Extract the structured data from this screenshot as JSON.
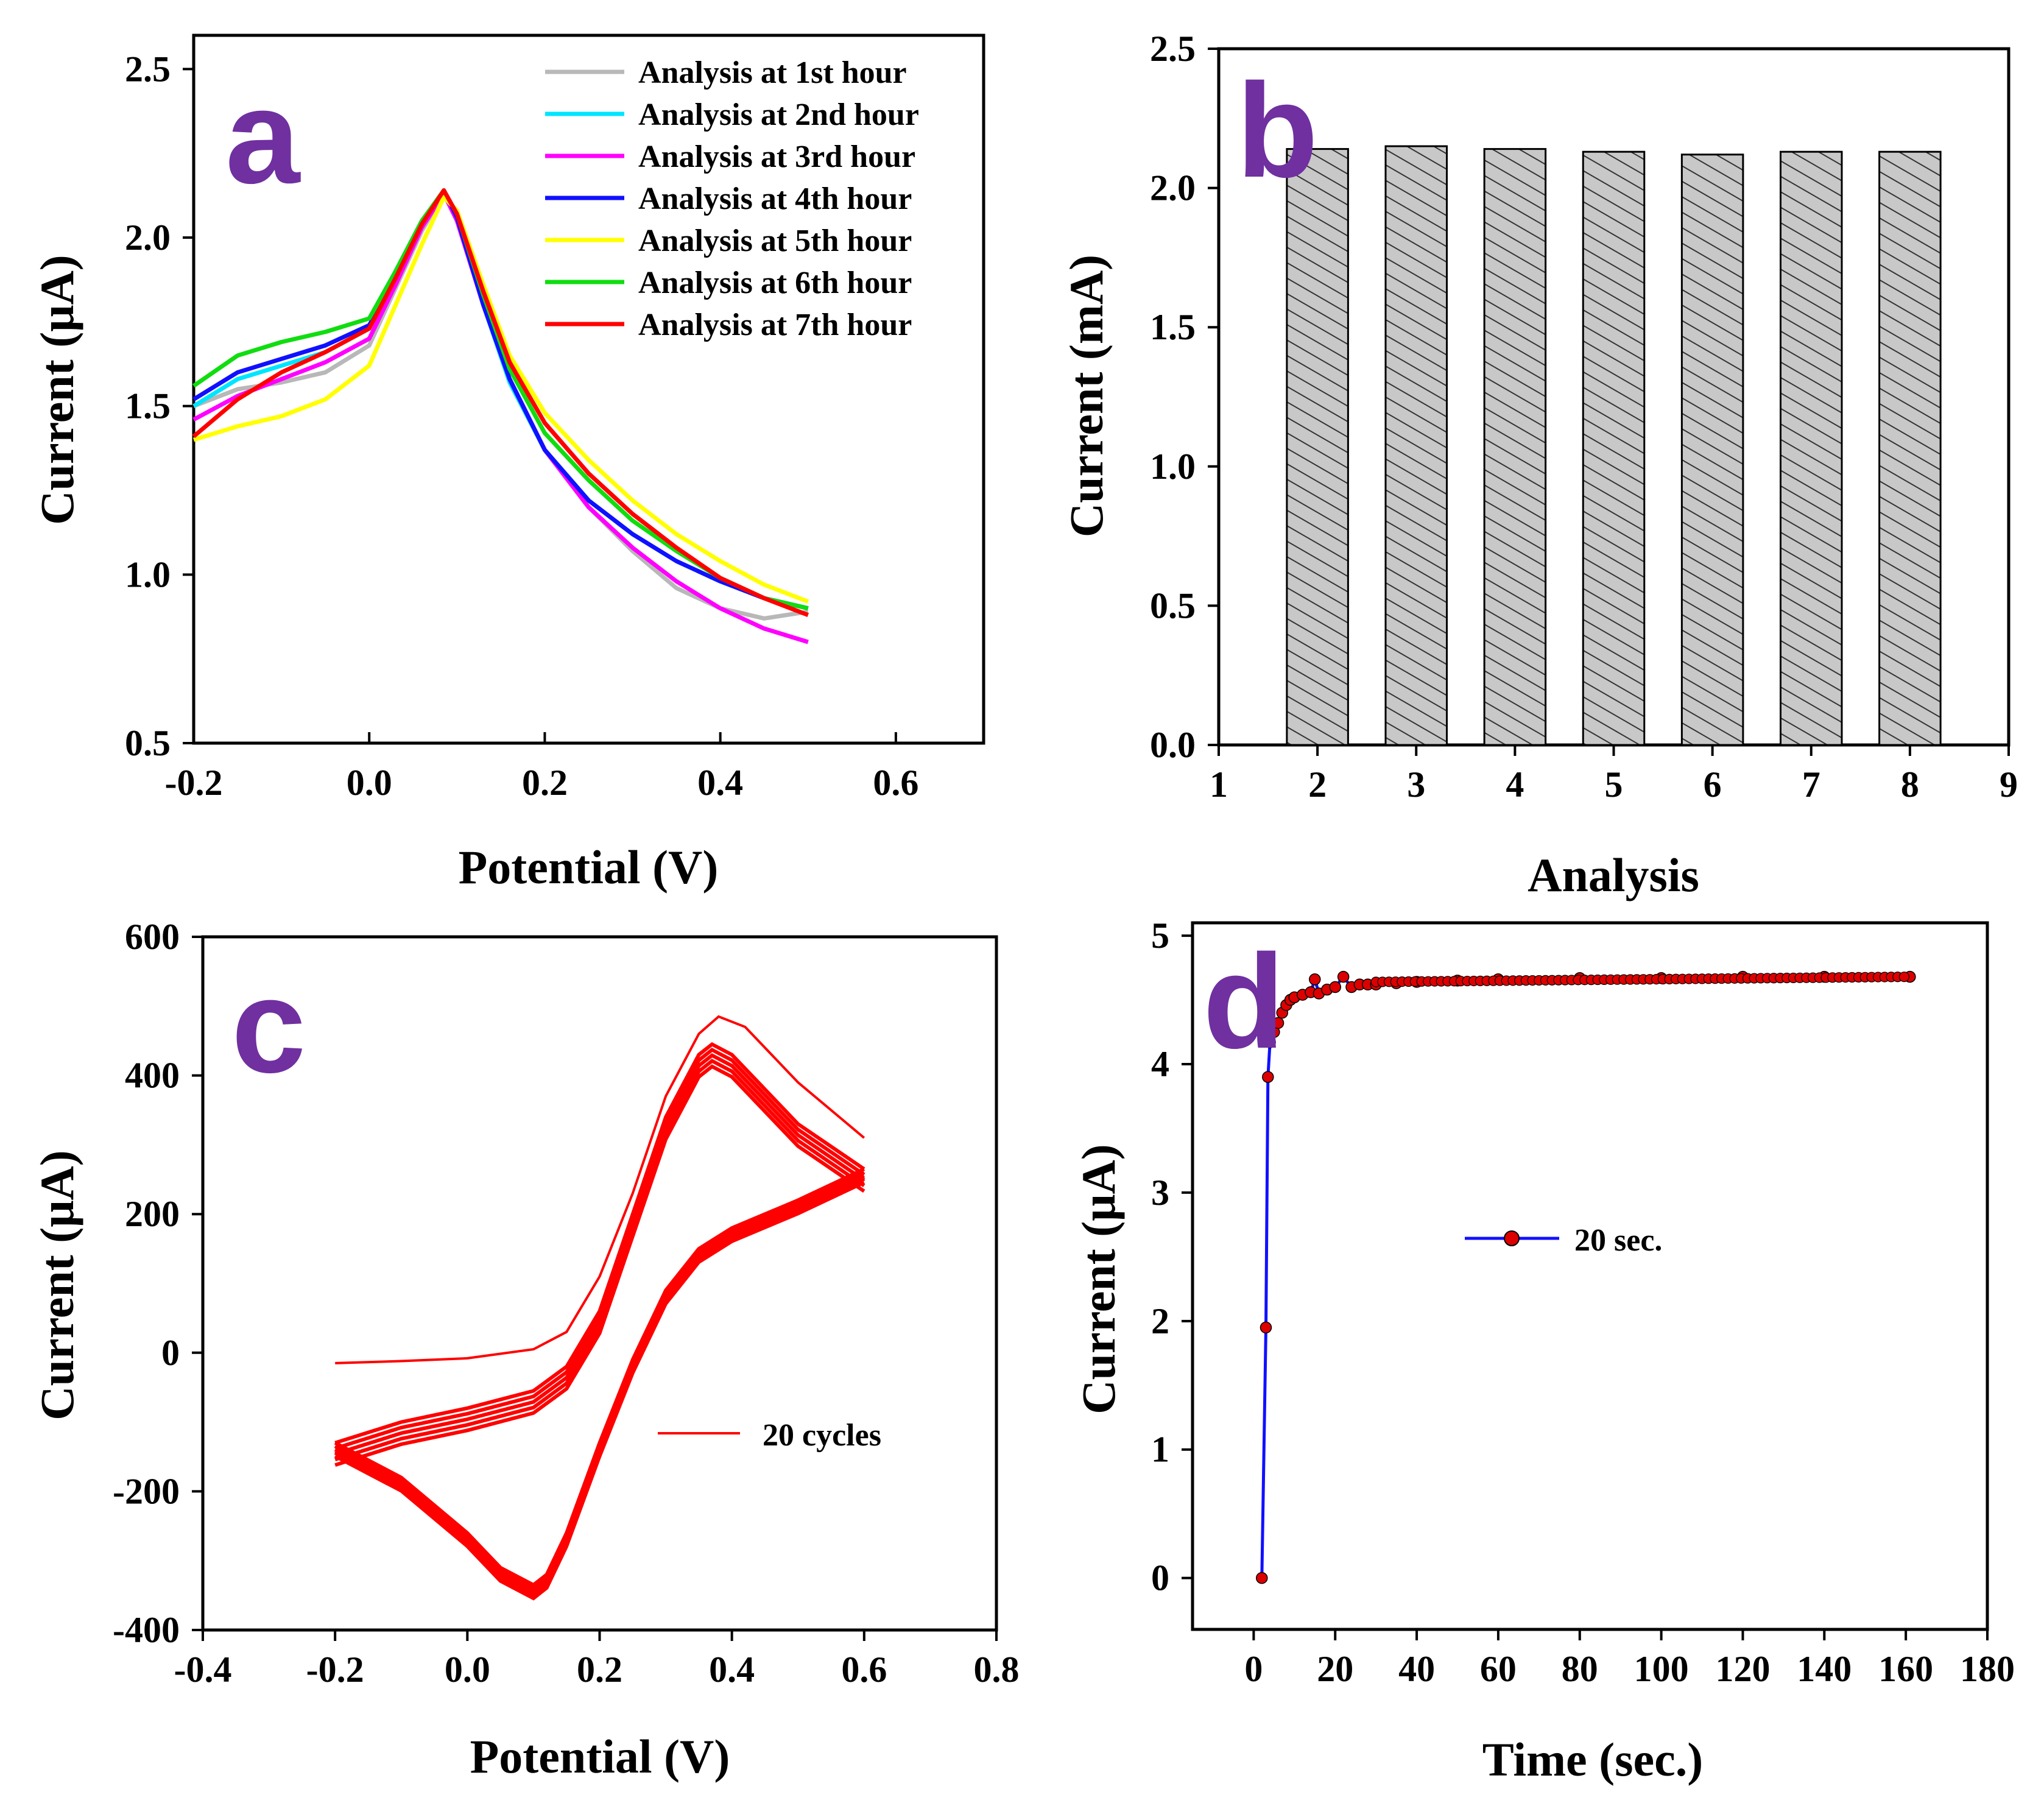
{
  "colors": {
    "panel_letter": "#7030a0",
    "h1": "#b8b8b8",
    "h2": "#00e5ff",
    "h3": "#ff00ff",
    "h4": "#1010ff",
    "h5": "#ffff00",
    "h6": "#10dd10",
    "h7": "#ff0000",
    "bar_fill": "#c8c8c8",
    "cv": "#ff0000",
    "ca_line": "#1010ff",
    "ca_marker": "#dd0000"
  },
  "chart_data": [
    {
      "panel": "a",
      "type": "line",
      "xlabel": "Potential (V)",
      "ylabel": "Current (μA)",
      "xlim": [
        -0.2,
        0.7
      ],
      "ylim": [
        0.5,
        2.6
      ],
      "xticks": [
        "-0.2",
        "0.0",
        "0.2",
        "0.4",
        "0.6"
      ],
      "xtick_values": [
        -0.2,
        0.0,
        0.2,
        0.4,
        0.6
      ],
      "yticks": [
        "0.5",
        "1.0",
        "1.5",
        "2.0",
        "2.5"
      ],
      "ytick_values": [
        0.5,
        1.0,
        1.5,
        2.0,
        2.5
      ],
      "legend_position": "top-right",
      "x": [
        -0.2,
        -0.15,
        -0.1,
        -0.05,
        0.0,
        0.03,
        0.06,
        0.085,
        0.1,
        0.13,
        0.16,
        0.2,
        0.25,
        0.3,
        0.35,
        0.4,
        0.45,
        0.5
      ],
      "series": [
        {
          "name": "Analysis at 1st hour",
          "color_key": "h1",
          "values": [
            1.5,
            1.55,
            1.57,
            1.6,
            1.68,
            1.85,
            2.02,
            2.13,
            2.05,
            1.8,
            1.58,
            1.37,
            1.2,
            1.07,
            0.96,
            0.9,
            0.87,
            0.89
          ]
        },
        {
          "name": "Analysis at 2nd hour",
          "color_key": "h2",
          "values": [
            1.5,
            1.58,
            1.62,
            1.66,
            1.73,
            1.88,
            2.04,
            2.14,
            2.06,
            1.8,
            1.57,
            1.37,
            1.22,
            1.12,
            1.04,
            0.98,
            0.93,
            0.9
          ]
        },
        {
          "name": "Analysis at 3rd hour",
          "color_key": "h3",
          "values": [
            1.46,
            1.53,
            1.58,
            1.63,
            1.7,
            1.86,
            2.03,
            2.13,
            2.05,
            1.8,
            1.58,
            1.37,
            1.2,
            1.08,
            0.98,
            0.9,
            0.84,
            0.8
          ]
        },
        {
          "name": "Analysis at 4th hour",
          "color_key": "h4",
          "values": [
            1.52,
            1.6,
            1.64,
            1.68,
            1.74,
            1.88,
            2.04,
            2.14,
            2.06,
            1.8,
            1.58,
            1.37,
            1.22,
            1.12,
            1.04,
            0.98,
            0.93,
            0.9
          ]
        },
        {
          "name": "Analysis at 5th hour",
          "color_key": "h5",
          "values": [
            1.4,
            1.44,
            1.47,
            1.52,
            1.62,
            1.8,
            1.98,
            2.12,
            2.08,
            1.86,
            1.65,
            1.48,
            1.34,
            1.22,
            1.12,
            1.04,
            0.97,
            0.92
          ]
        },
        {
          "name": "Analysis at 6th hour",
          "color_key": "h6",
          "values": [
            1.56,
            1.65,
            1.69,
            1.72,
            1.76,
            1.9,
            2.05,
            2.14,
            2.07,
            1.83,
            1.61,
            1.42,
            1.28,
            1.16,
            1.07,
            0.99,
            0.93,
            0.9
          ]
        },
        {
          "name": "Analysis at 7th hour",
          "color_key": "h7",
          "values": [
            1.41,
            1.52,
            1.6,
            1.66,
            1.73,
            1.88,
            2.04,
            2.14,
            2.07,
            1.84,
            1.63,
            1.45,
            1.3,
            1.18,
            1.08,
            0.99,
            0.93,
            0.88
          ]
        }
      ]
    },
    {
      "panel": "b",
      "type": "bar",
      "xlabel": "Analysis",
      "ylabel": "Current (mA)",
      "xlim": [
        1,
        9
      ],
      "ylim": [
        0,
        2.5
      ],
      "xticks": [
        "1",
        "2",
        "3",
        "4",
        "5",
        "6",
        "7",
        "8",
        "9"
      ],
      "xtick_values": [
        1,
        2,
        3,
        4,
        5,
        6,
        7,
        8,
        9
      ],
      "yticks": [
        "0.0",
        "0.5",
        "1.0",
        "1.5",
        "2.0",
        "2.5"
      ],
      "ytick_values": [
        0,
        0.5,
        1.0,
        1.5,
        2.0,
        2.5
      ],
      "categories": [
        2,
        3,
        4,
        5,
        6,
        7,
        8
      ],
      "values": [
        2.14,
        2.15,
        2.14,
        2.13,
        2.12,
        2.13,
        2.13
      ]
    },
    {
      "panel": "c",
      "type": "line",
      "xlabel": "Potential (V)",
      "ylabel": "Current (μA)",
      "xlim": [
        -0.4,
        0.8
      ],
      "ylim": [
        -400,
        600
      ],
      "xticks": [
        "-0.4",
        "-0.2",
        "0.0",
        "0.2",
        "0.4",
        "0.6",
        "0.8"
      ],
      "xtick_values": [
        -0.4,
        -0.2,
        0.0,
        0.2,
        0.4,
        0.6,
        0.8
      ],
      "yticks": [
        "-400",
        "-200",
        "0",
        "200",
        "400",
        "600"
      ],
      "ytick_values": [
        -400,
        -200,
        0,
        200,
        400,
        600
      ],
      "legend_position": "center-right",
      "series": [
        {
          "name": "20 cycles",
          "color_key": "cv",
          "first_sweep": {
            "x": [
              -0.2,
              -0.1,
              0.0,
              0.1,
              0.15,
              0.2,
              0.25,
              0.3,
              0.35,
              0.38,
              0.42,
              0.5,
              0.6
            ],
            "y": [
              -15,
              -12,
              -8,
              5,
              30,
              110,
              230,
              370,
              460,
              485,
              470,
              390,
              310
            ]
          },
          "forward": {
            "x": [
              -0.2,
              -0.1,
              0.0,
              0.1,
              0.15,
              0.2,
              0.25,
              0.3,
              0.35,
              0.37,
              0.4,
              0.45,
              0.5,
              0.6
            ],
            "y": [
              -130,
              -100,
              -80,
              -55,
              -20,
              60,
              200,
              340,
              430,
              445,
              430,
              380,
              330,
              265
            ]
          },
          "reverse": {
            "x": [
              0.6,
              0.5,
              0.4,
              0.35,
              0.3,
              0.25,
              0.2,
              0.15,
              0.12,
              0.1,
              0.05,
              0.0,
              -0.1,
              -0.2
            ],
            "y": [
              265,
              220,
              180,
              150,
              90,
              -10,
              -130,
              -260,
              -320,
              -335,
              -310,
              -260,
              -180,
              -130
            ]
          }
        }
      ]
    },
    {
      "panel": "d",
      "type": "line",
      "xlabel": "Time (sec.)",
      "ylabel": "Current (μA)",
      "xlim": [
        -15,
        180
      ],
      "ylim": [
        -0.4,
        5.1
      ],
      "xticks": [
        "0",
        "20",
        "40",
        "60",
        "80",
        "100",
        "120",
        "140",
        "160",
        "180"
      ],
      "xtick_values": [
        0,
        20,
        40,
        60,
        80,
        100,
        120,
        140,
        160,
        180
      ],
      "yticks": [
        "0",
        "1",
        "2",
        "3",
        "4",
        "5"
      ],
      "ytick_values": [
        0,
        1,
        2,
        3,
        4,
        5
      ],
      "legend_position": "center-left",
      "series": [
        {
          "name": "20 sec.",
          "color_key": "ca_line",
          "x": [
            2,
            3,
            3.5,
            4,
            5,
            6,
            7,
            8,
            9,
            10,
            12,
            14,
            15,
            16,
            18,
            20,
            22,
            24,
            26,
            28,
            30,
            35,
            40,
            50,
            60,
            80,
            100,
            120,
            140,
            161
          ],
          "y": [
            0,
            1.95,
            3.9,
            4.17,
            4.25,
            4.32,
            4.4,
            4.46,
            4.5,
            4.52,
            4.54,
            4.56,
            4.66,
            4.55,
            4.58,
            4.6,
            4.68,
            4.6,
            4.62,
            4.62,
            4.62,
            4.63,
            4.64,
            4.65,
            4.66,
            4.67,
            4.67,
            4.68,
            4.68,
            4.68
          ]
        }
      ]
    }
  ]
}
